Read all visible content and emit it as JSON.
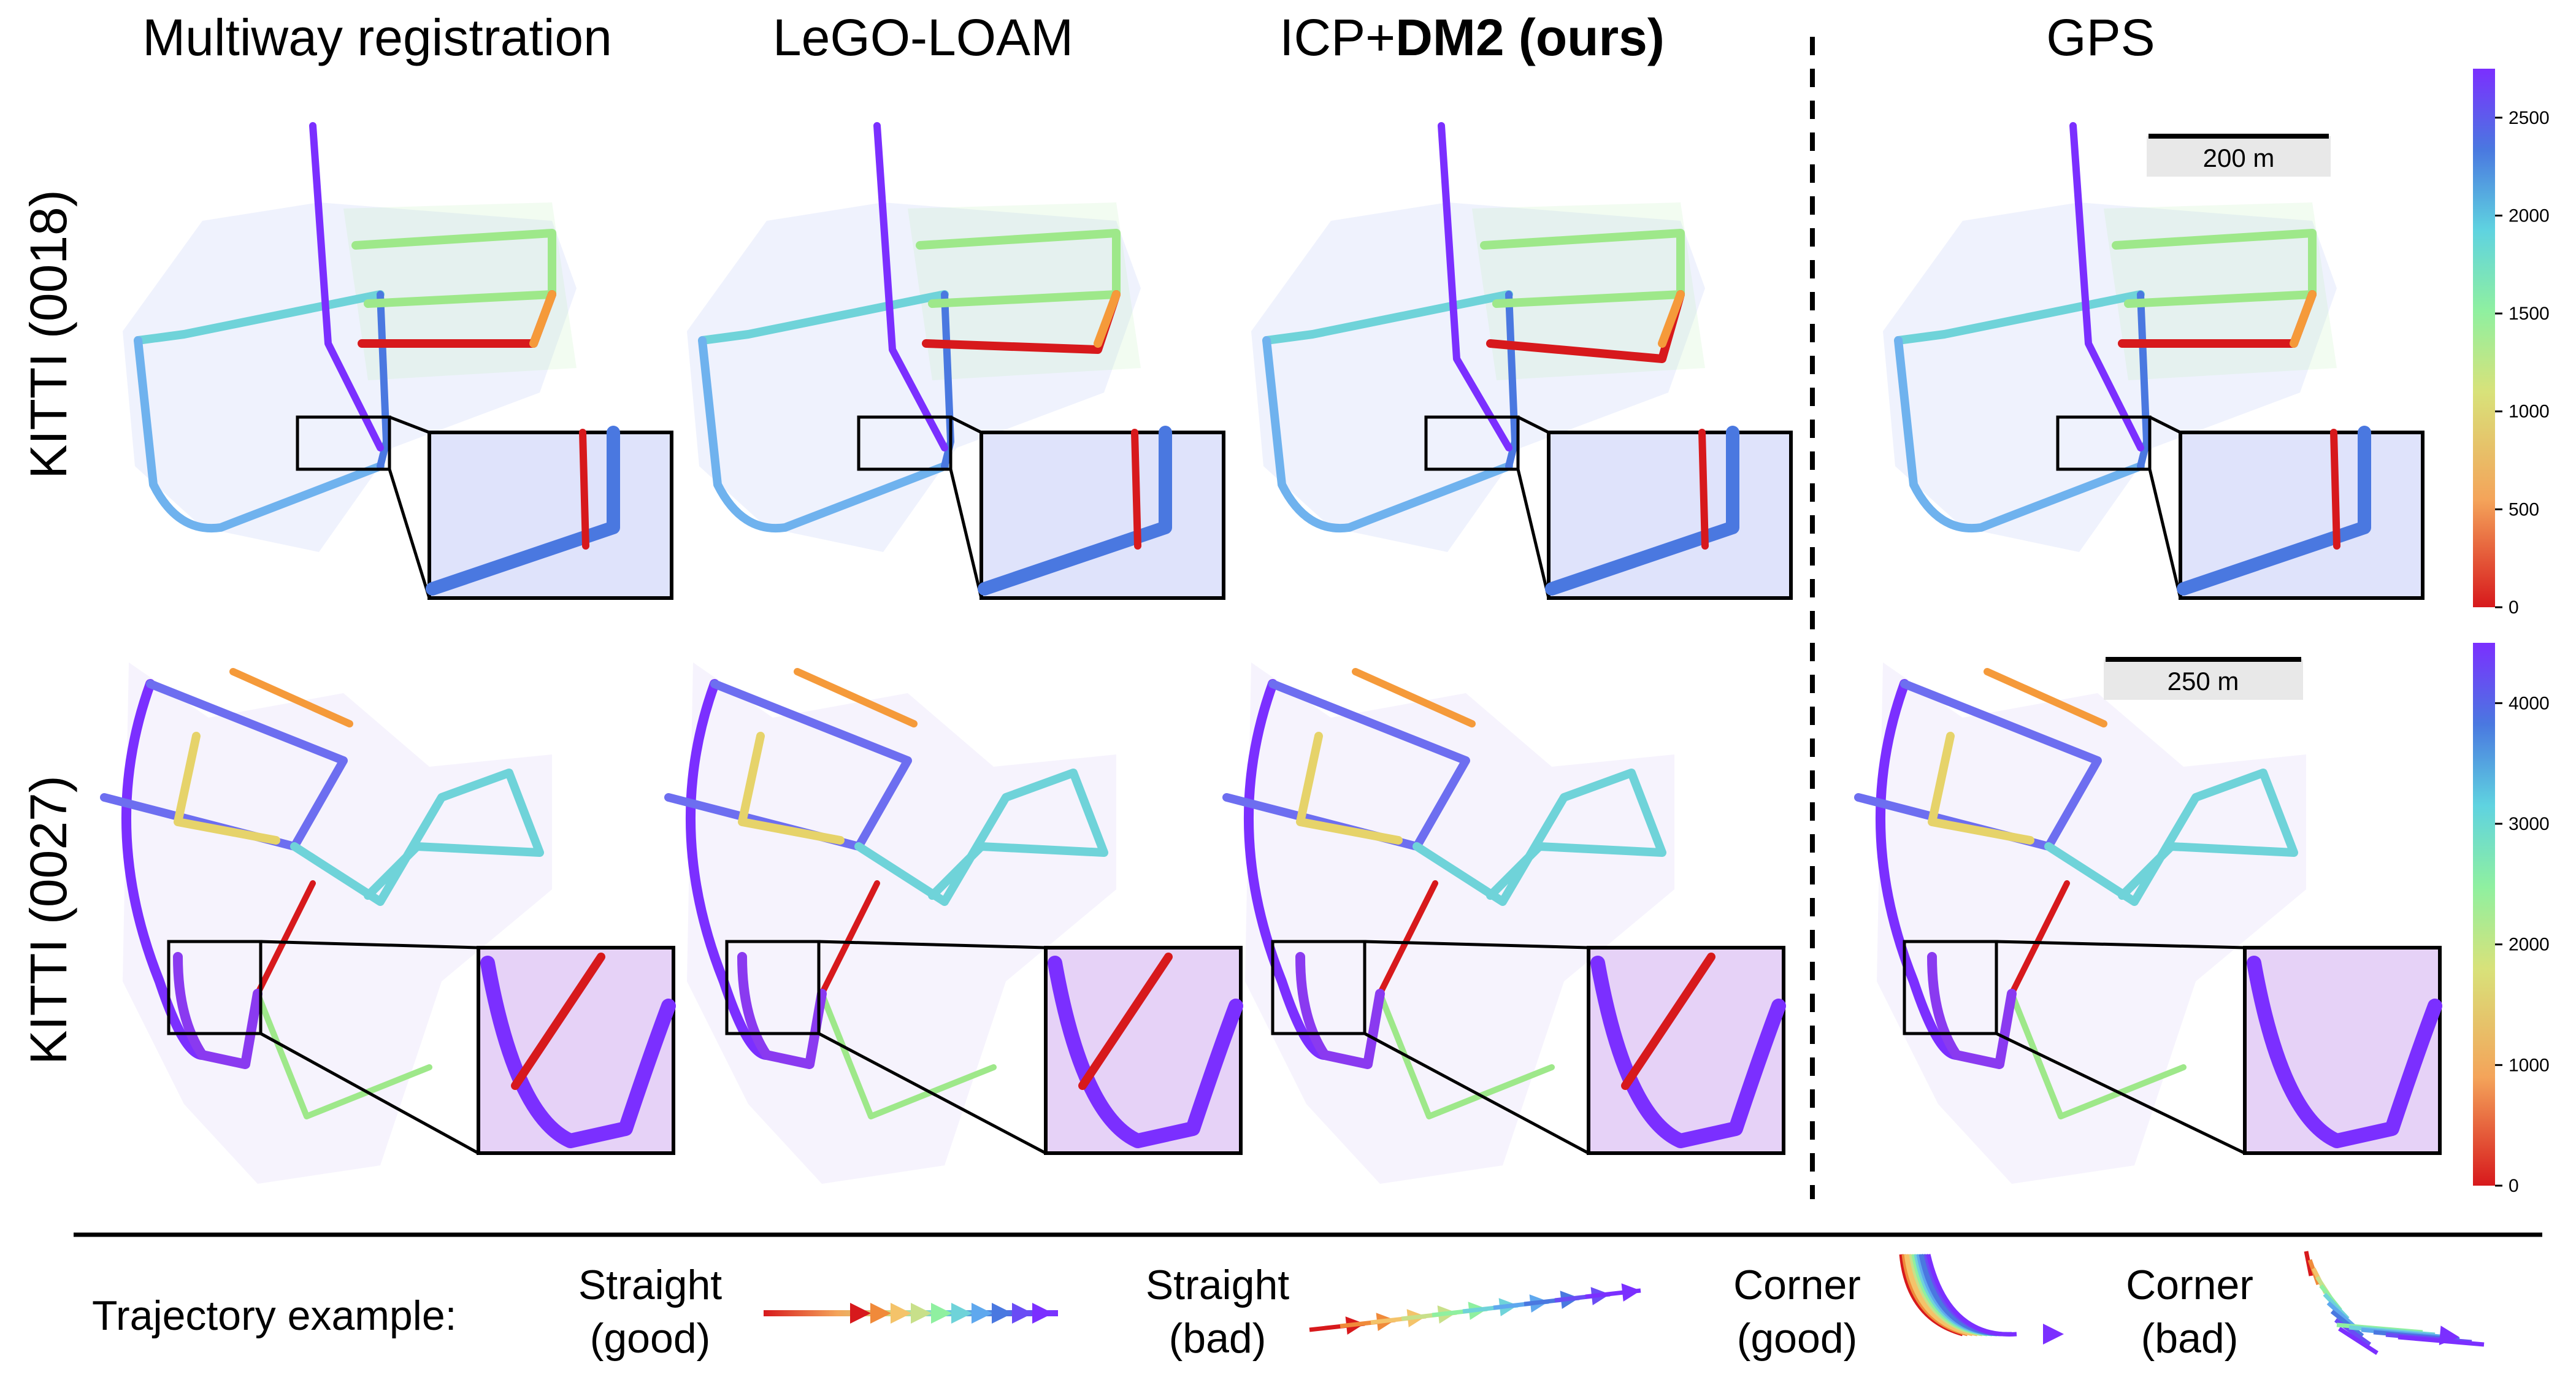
{
  "columns": {
    "multiway": "Multiway registration",
    "lego": "LeGO-LOAM",
    "icp_prefix": "ICP+",
    "icp_bold": "DM2 (ours)",
    "gps": "GPS"
  },
  "rows": {
    "kitti_0018": "KITTI (0018)",
    "kitti_0027": "KITTI (0027)"
  },
  "scalebars": {
    "row1": "200 m",
    "row2": "250 m"
  },
  "colorbars": {
    "row1": {
      "ticks": [
        "2500",
        "2000",
        "1500",
        "1000",
        "500",
        "0"
      ],
      "max": 2750
    },
    "row2": {
      "ticks": [
        "4000",
        "3000",
        "2000",
        "1000",
        "0"
      ],
      "max": 4500
    }
  },
  "legend": {
    "title": "Trajectory example:",
    "straight_good": [
      "Straight",
      "(good)"
    ],
    "straight_bad": [
      "Straight",
      "(bad)"
    ],
    "corner_good": [
      "Corner",
      "(good)"
    ],
    "corner_bad": [
      "Corner",
      "(bad)"
    ]
  },
  "colors": {
    "red": "#d7191c",
    "orange": "#f59a3a",
    "yellow": "#e6d36a",
    "green": "#9ee88a",
    "cyan": "#6fd3d9",
    "blue": "#4a78e0",
    "purple": "#7b2fff"
  }
}
